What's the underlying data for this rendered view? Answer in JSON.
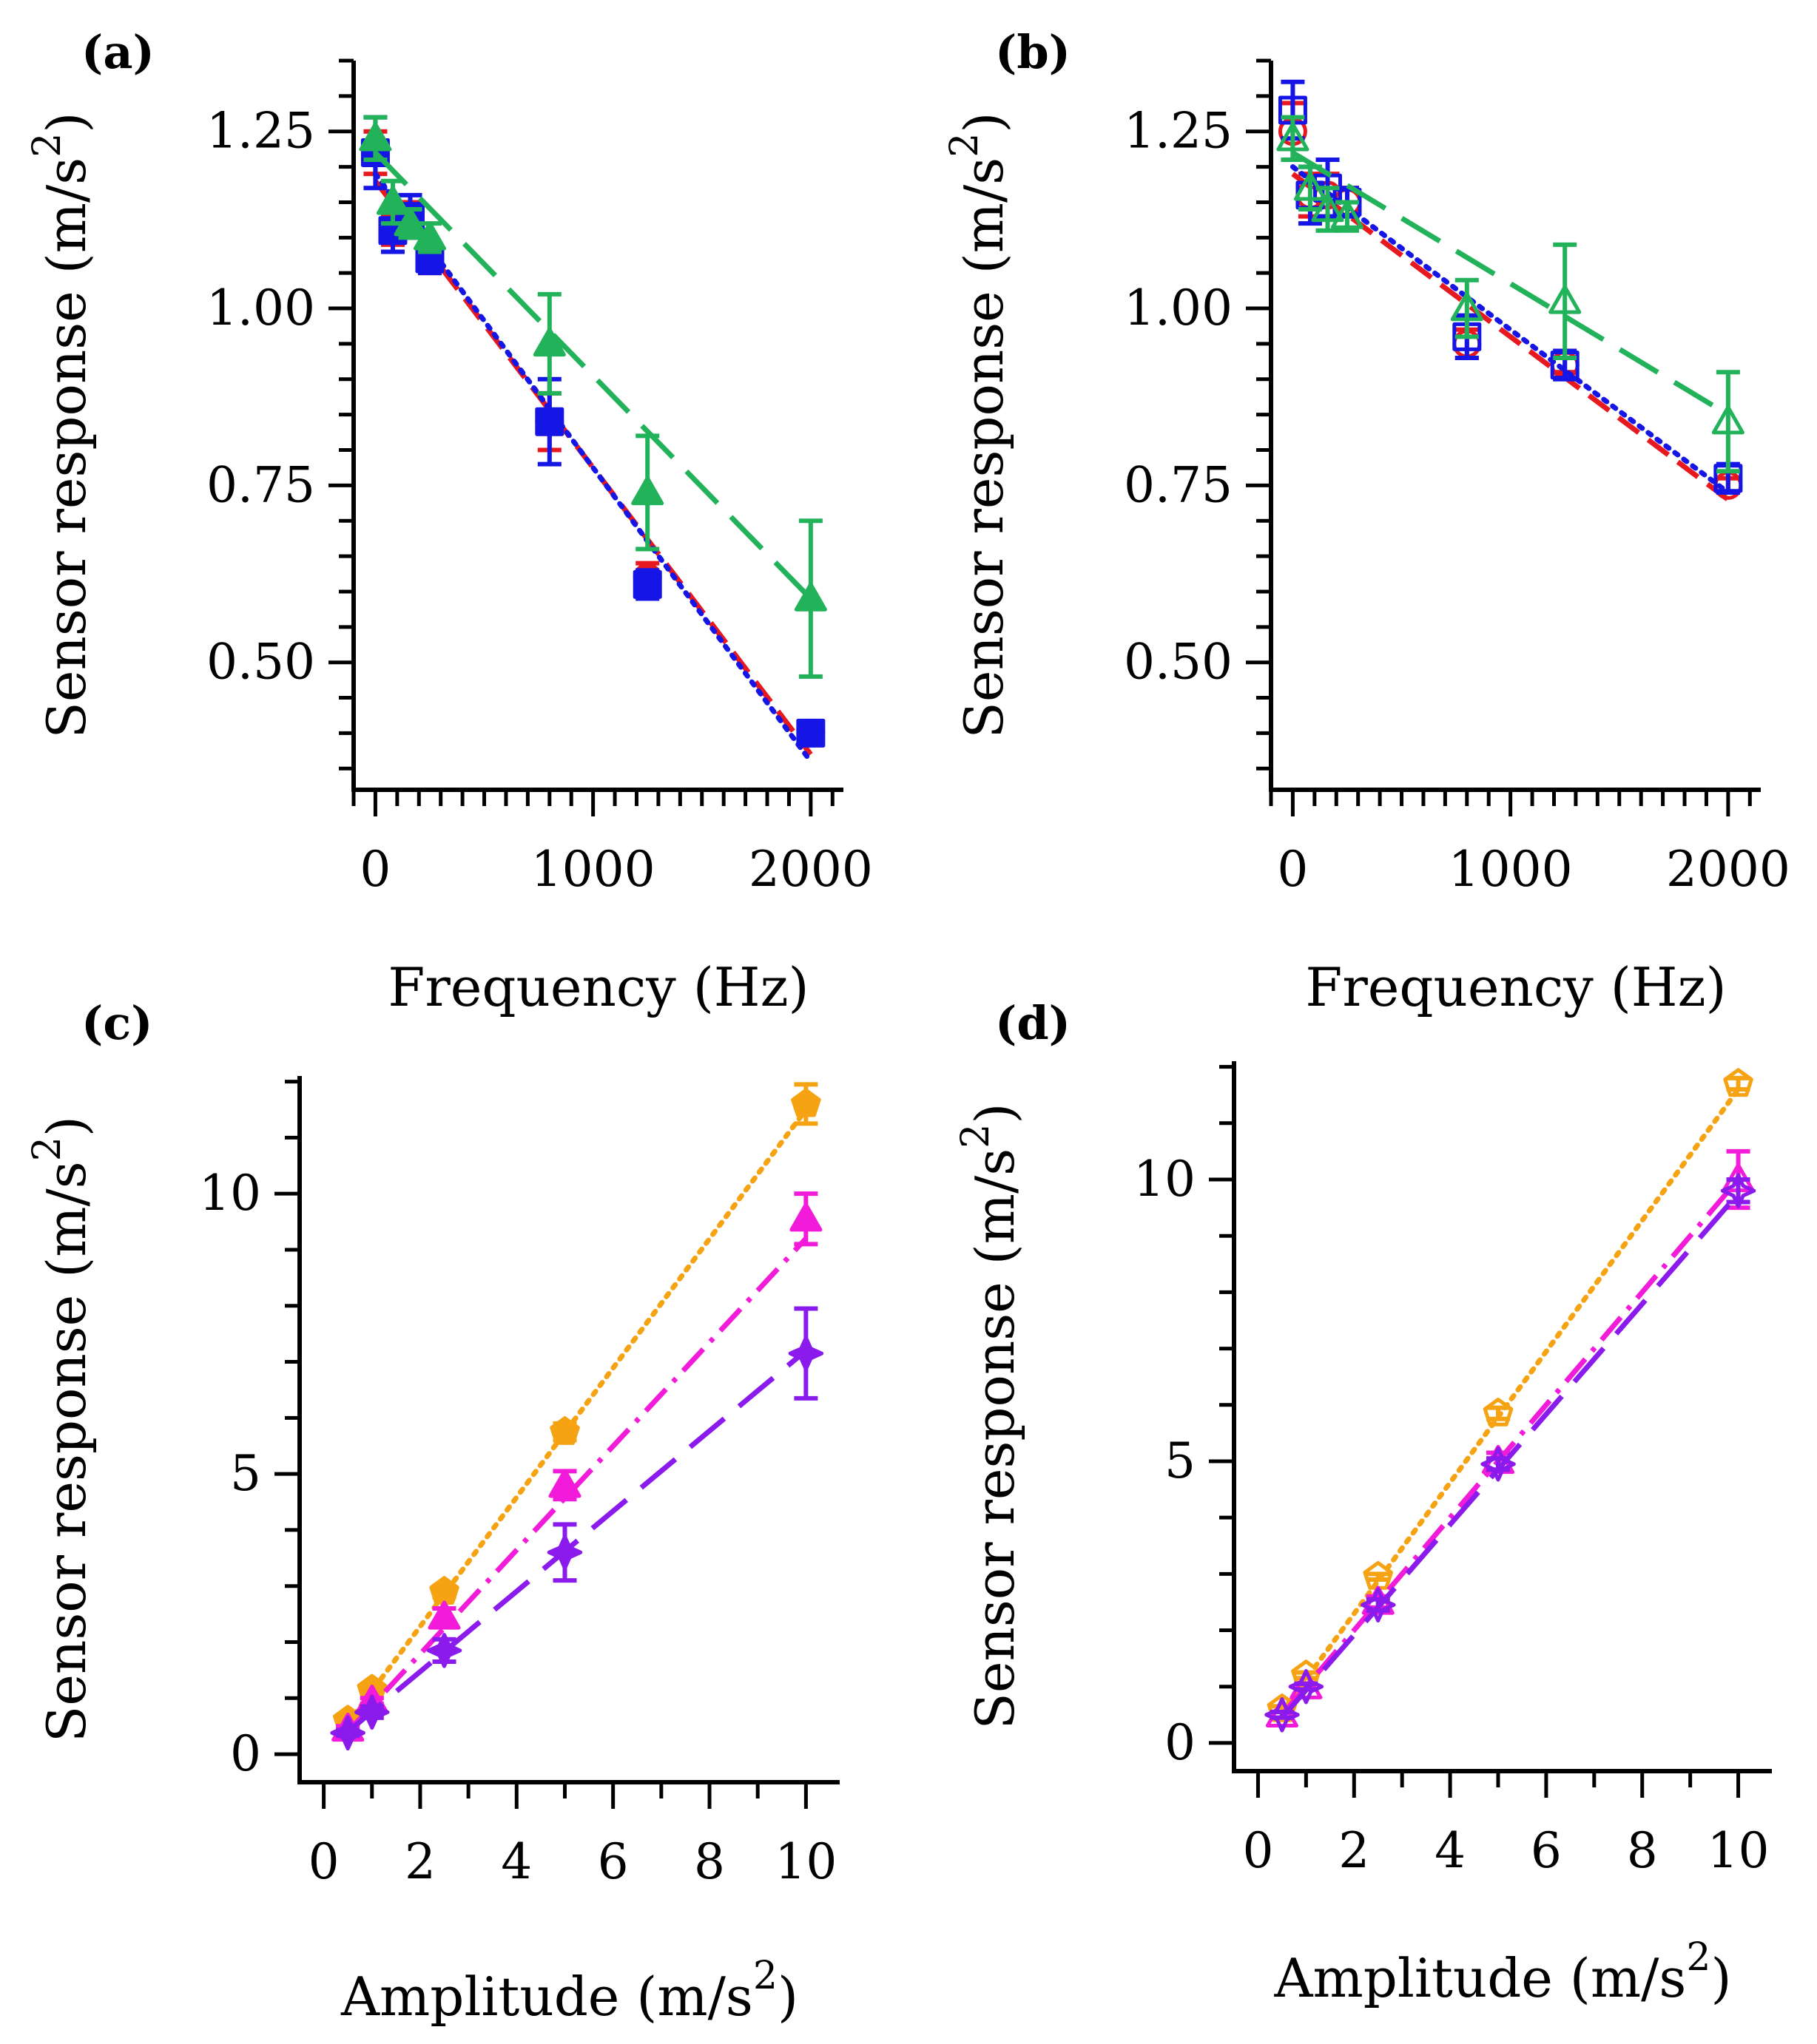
{
  "chart_data": [
    {
      "panel": "(a)",
      "type": "line",
      "xlabel": "Frequency (Hz)",
      "ylabel": "Sensor response (m/s",
      "ylabel_sup": "2",
      "ylabel_close": ")",
      "xlim": [
        -100,
        2150
      ],
      "ylim": [
        0.32,
        1.35
      ],
      "xticks": [
        0,
        1000,
        2000
      ],
      "xtick_labels": [
        "0",
        "1000",
        "2000"
      ],
      "yticks": [
        0.5,
        0.75,
        1.0,
        1.25
      ],
      "ytick_labels": [
        "0.50",
        "0.75",
        "1.00",
        "1.25"
      ],
      "x_minor_step": 100,
      "y_minor_step": 0.05,
      "series": [
        {
          "name": "red",
          "color": "#e8191e",
          "marker": "circle",
          "filled": true,
          "line": "dashed",
          "x": [
            0,
            80,
            160,
            250,
            800,
            1250,
            2000
          ],
          "y": [
            1.22,
            1.11,
            1.13,
            1.07,
            0.84,
            0.62,
            0.4
          ],
          "err": [
            0.03,
            0.02,
            0.02,
            0.02,
            0.04,
            0.02,
            0.01
          ],
          "fit": [
            [
              0,
              1.18
            ],
            [
              2000,
              0.37
            ]
          ]
        },
        {
          "name": "blue",
          "color": "#1515e6",
          "marker": "square",
          "filled": true,
          "line": "dotted",
          "x": [
            0,
            80,
            160,
            250,
            800,
            1250,
            2000
          ],
          "y": [
            1.22,
            1.11,
            1.13,
            1.07,
            0.84,
            0.61,
            0.4
          ],
          "err": [
            0.05,
            0.03,
            0.03,
            0.02,
            0.06,
            0.02,
            0.01
          ],
          "fit": [
            [
              0,
              1.19
            ],
            [
              2000,
              0.36
            ]
          ]
        },
        {
          "name": "green",
          "color": "#22b25a",
          "marker": "triangle",
          "filled": true,
          "line": "longdash",
          "x": [
            0,
            80,
            160,
            250,
            800,
            1250,
            2000
          ],
          "y": [
            1.24,
            1.15,
            1.12,
            1.1,
            0.95,
            0.74,
            0.59
          ],
          "err": [
            0.03,
            0.03,
            0.02,
            0.02,
            0.07,
            0.08,
            0.11
          ],
          "fit": [
            [
              0,
              1.22
            ],
            [
              2000,
              0.59
            ]
          ]
        }
      ]
    },
    {
      "panel": "(b)",
      "type": "line",
      "xlabel": "Frequency (Hz)",
      "ylabel": "Sensor response (m/s",
      "ylabel_sup": "2",
      "ylabel_close": ")",
      "xlim": [
        -100,
        2150
      ],
      "ylim": [
        0.32,
        1.35
      ],
      "xticks": [
        0,
        1000,
        2000
      ],
      "xtick_labels": [
        "0",
        "1000",
        "2000"
      ],
      "yticks": [
        0.5,
        0.75,
        1.0,
        1.25
      ],
      "ytick_labels": [
        "0.50",
        "0.75",
        "1.00",
        "1.25"
      ],
      "x_minor_step": 100,
      "y_minor_step": 0.05,
      "series": [
        {
          "name": "red",
          "color": "#e8191e",
          "marker": "circle",
          "filled": false,
          "line": "dashed",
          "x": [
            0,
            80,
            160,
            250,
            800,
            1250,
            2000
          ],
          "y": [
            1.25,
            1.16,
            1.16,
            1.15,
            0.95,
            0.92,
            0.75
          ],
          "err": [
            0.04,
            0.03,
            0.03,
            0.02,
            0.02,
            0.01,
            0.01
          ],
          "fit": [
            [
              0,
              1.19
            ],
            [
              2000,
              0.73
            ]
          ]
        },
        {
          "name": "blue",
          "color": "#1515e6",
          "marker": "square",
          "filled": false,
          "line": "dotted",
          "x": [
            0,
            80,
            160,
            250,
            800,
            1250,
            2000
          ],
          "y": [
            1.28,
            1.16,
            1.17,
            1.15,
            0.96,
            0.92,
            0.76
          ],
          "err": [
            0.04,
            0.04,
            0.04,
            0.02,
            0.03,
            0.02,
            0.02
          ],
          "fit": [
            [
              0,
              1.2
            ],
            [
              2000,
              0.74
            ]
          ]
        },
        {
          "name": "green",
          "color": "#22b25a",
          "marker": "triangle",
          "filled": false,
          "line": "longdash",
          "x": [
            0,
            80,
            160,
            250,
            800,
            1250,
            2000
          ],
          "y": [
            1.24,
            1.17,
            1.14,
            1.13,
            1.0,
            1.01,
            0.84
          ],
          "err": [
            0.03,
            0.03,
            0.03,
            0.02,
            0.04,
            0.08,
            0.07
          ],
          "fit": [
            [
              0,
              1.22
            ],
            [
              2000,
              0.85
            ]
          ]
        }
      ]
    },
    {
      "panel": "(c)",
      "type": "line",
      "xlabel": "Amplitude (m/s",
      "xlabel_sup": "2",
      "xlabel_close": ")",
      "ylabel": "Sensor response (m/s",
      "ylabel_sup": "2",
      "ylabel_close": ")",
      "xlim": [
        -0.5,
        10.7
      ],
      "ylim": [
        -0.5,
        12.1
      ],
      "xticks": [
        0,
        2,
        4,
        6,
        8,
        10
      ],
      "xtick_labels": [
        "0",
        "2",
        "4",
        "6",
        "8",
        "10"
      ],
      "yticks": [
        0,
        5,
        10
      ],
      "ytick_labels": [
        "0",
        "5",
        "10"
      ],
      "x_minor_step": 1,
      "y_minor_step": 1,
      "series": [
        {
          "name": "orange",
          "color": "#f5a312",
          "marker": "pentagon",
          "filled": true,
          "line": "dotted",
          "x": [
            0.5,
            1,
            2.5,
            5,
            10
          ],
          "y": [
            0.6,
            1.15,
            2.9,
            5.75,
            11.6
          ],
          "err": [
            0.05,
            0.05,
            0.1,
            0.15,
            0.35
          ],
          "fit": [
            [
              0.5,
              0.55
            ],
            [
              10,
              11.5
            ]
          ]
        },
        {
          "name": "magenta",
          "color": "#f21bd9",
          "marker": "triangle",
          "filled": true,
          "line": "dashdot",
          "x": [
            0.5,
            1,
            2.5,
            5,
            10
          ],
          "y": [
            0.45,
            0.95,
            2.45,
            4.8,
            9.55
          ],
          "err": [
            0.05,
            0.05,
            0.15,
            0.25,
            0.45
          ],
          "fit": [
            [
              0.5,
              0.4
            ],
            [
              10,
              9.2
            ]
          ]
        },
        {
          "name": "purple",
          "color": "#8a1bec",
          "marker": "star",
          "filled": true,
          "line": "longdash",
          "x": [
            0.5,
            1,
            2.5,
            5,
            10
          ],
          "y": [
            0.38,
            0.75,
            1.85,
            3.6,
            7.15
          ],
          "err": [
            0.05,
            0.1,
            0.2,
            0.5,
            0.8
          ],
          "fit": [
            [
              0.5,
              0.4
            ],
            [
              10,
              7.2
            ]
          ]
        }
      ]
    },
    {
      "panel": "(d)",
      "type": "line",
      "xlabel": "Amplitude (m/s",
      "xlabel_sup": "2",
      "xlabel_close": ")",
      "ylabel": "Sensor response (m/s",
      "ylabel_sup": "2",
      "ylabel_close": ")",
      "xlim": [
        -0.5,
        10.7
      ],
      "ylim": [
        -0.5,
        12.1
      ],
      "xticks": [
        0,
        2,
        4,
        6,
        8,
        10
      ],
      "xtick_labels": [
        "0",
        "2",
        "4",
        "6",
        "8",
        "10"
      ],
      "yticks": [
        0,
        5,
        10
      ],
      "ytick_labels": [
        "0",
        "5",
        "10"
      ],
      "x_minor_step": 1,
      "y_minor_step": 1,
      "series": [
        {
          "name": "orange",
          "color": "#f5a312",
          "marker": "pentagon",
          "filled": false,
          "line": "dotted",
          "x": [
            0.5,
            1,
            2.5,
            5,
            10
          ],
          "y": [
            0.6,
            1.2,
            2.95,
            5.85,
            11.7
          ],
          "err": [
            0.05,
            0.05,
            0.05,
            0.1,
            0.1
          ],
          "fit": [
            [
              0.5,
              0.55
            ],
            [
              10,
              11.6
            ]
          ]
        },
        {
          "name": "magenta",
          "color": "#f21bd9",
          "marker": "triangle",
          "filled": false,
          "line": "dashdot",
          "x": [
            0.5,
            1,
            2.5,
            5,
            10
          ],
          "y": [
            0.5,
            1.0,
            2.5,
            5.0,
            10.0
          ],
          "err": [
            0.05,
            0.05,
            0.1,
            0.15,
            0.5
          ],
          "fit": [
            [
              0.5,
              0.5
            ],
            [
              10,
              10.0
            ]
          ]
        },
        {
          "name": "purple",
          "color": "#8a1bec",
          "marker": "star",
          "filled": false,
          "line": "longdash",
          "x": [
            0.5,
            1,
            2.5,
            5,
            10
          ],
          "y": [
            0.5,
            1.0,
            2.45,
            4.95,
            9.8
          ],
          "err": [
            0.05,
            0.05,
            0.1,
            0.1,
            0.2
          ],
          "fit": [
            [
              0.5,
              0.45
            ],
            [
              10,
              9.75
            ]
          ]
        }
      ]
    }
  ]
}
